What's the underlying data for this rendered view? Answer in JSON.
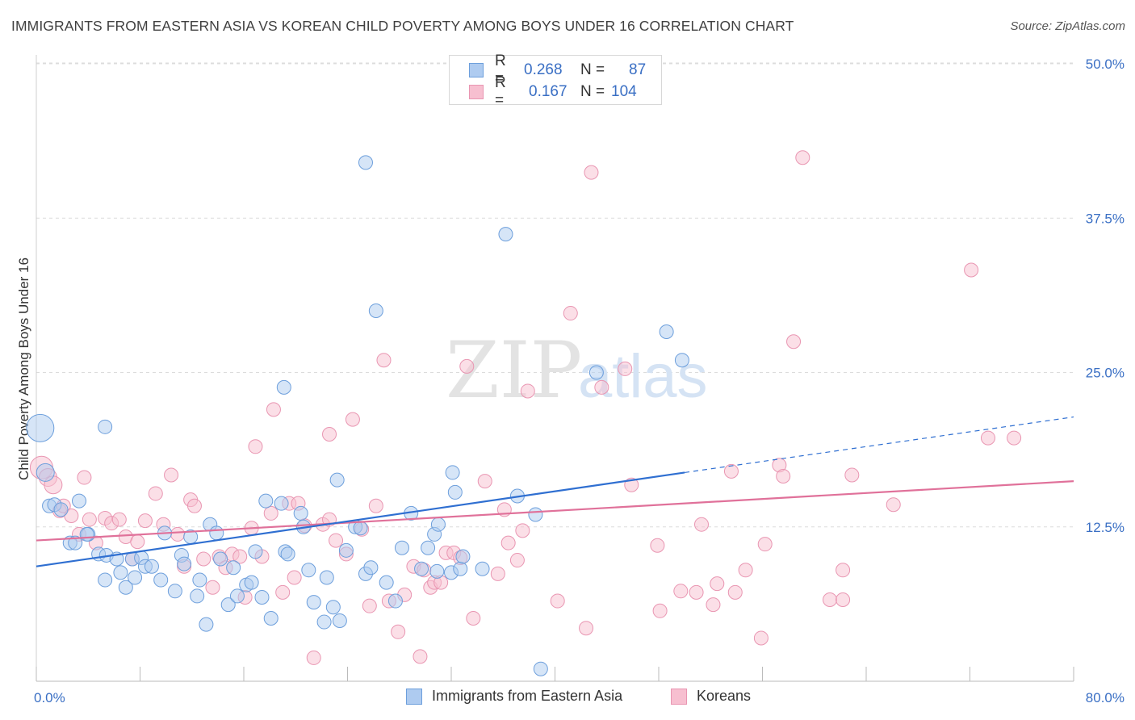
{
  "header": {
    "title": "IMMIGRANTS FROM EASTERN ASIA VS KOREAN CHILD POVERTY AMONG BOYS UNDER 16 CORRELATION CHART",
    "source": "Source: ZipAtlas.com"
  },
  "watermark": {
    "zip": "ZIP",
    "atlas": "atlas"
  },
  "legend": {
    "rows": [
      {
        "r_label": "R =",
        "r_value": "0.268",
        "n_label": "N =",
        "n_value": "87"
      },
      {
        "r_label": "R =",
        "r_value": "0.167",
        "n_label": "N =",
        "n_value": "104"
      }
    ]
  },
  "bottom_legend": {
    "series1": "Immigrants from Eastern Asia",
    "series2": "Koreans"
  },
  "chart_data": {
    "type": "scatter",
    "title": "IMMIGRANTS FROM EASTERN ASIA VS KOREAN CHILD POVERTY AMONG BOYS UNDER 16 CORRELATION CHART",
    "xlabel": "",
    "ylabel": "Child Poverty Among Boys Under 16",
    "xlim": [
      0,
      80
    ],
    "ylim": [
      0,
      52
    ],
    "x_tick_labels": [
      "0.0%",
      "80.0%"
    ],
    "y_ticks": [
      12.5,
      25.0,
      37.5,
      50.0
    ],
    "y_tick_labels": [
      "12.5%",
      "25.0%",
      "37.5%",
      "50.0%"
    ],
    "grid": true,
    "legend_position": "top-center",
    "colors": {
      "series1_fill": "#aecbf0",
      "series1_stroke": "#6d9fdc",
      "series1_line": "#2f6fd1",
      "series2_fill": "#f7bfd0",
      "series2_stroke": "#e996b2",
      "series2_line": "#e0719a"
    },
    "series": [
      {
        "name": "Immigrants from Eastern Asia",
        "r": 0.268,
        "n": 87,
        "trend": {
          "x0": 0,
          "y0": 9.3,
          "x1": 50,
          "y1": 16.9,
          "dash_x1": 80,
          "dash_y1": 21.4
        },
        "points": [
          [
            0.3,
            20.5,
            4
          ],
          [
            0.7,
            16.9,
            2
          ],
          [
            1.0,
            14.2,
            1
          ],
          [
            1.4,
            14.3,
            1
          ],
          [
            1.9,
            13.9,
            1
          ],
          [
            2.6,
            11.2,
            1
          ],
          [
            3.3,
            14.6,
            1
          ],
          [
            3.0,
            11.2,
            1
          ],
          [
            4.0,
            11.9,
            1
          ],
          [
            4.8,
            10.3,
            1
          ],
          [
            5.3,
            20.6,
            1
          ],
          [
            3.9,
            11.9,
            1
          ],
          [
            5.4,
            10.2,
            1
          ],
          [
            6.2,
            9.9,
            1
          ],
          [
            6.5,
            8.8,
            1
          ],
          [
            6.9,
            7.6,
            1
          ],
          [
            5.3,
            8.2,
            1
          ],
          [
            7.4,
            9.9,
            1
          ],
          [
            7.6,
            8.4,
            1
          ],
          [
            8.1,
            10.0,
            1
          ],
          [
            8.4,
            9.3,
            1
          ],
          [
            8.9,
            9.3,
            1
          ],
          [
            9.6,
            8.2,
            1
          ],
          [
            9.9,
            12.0,
            1
          ],
          [
            10.7,
            7.3,
            1
          ],
          [
            11.2,
            10.2,
            1
          ],
          [
            11.4,
            9.5,
            1
          ],
          [
            11.9,
            11.7,
            1
          ],
          [
            12.4,
            6.9,
            1
          ],
          [
            12.6,
            8.2,
            1
          ],
          [
            13.1,
            4.6,
            1
          ],
          [
            13.4,
            12.7,
            1
          ],
          [
            13.9,
            12.0,
            1
          ],
          [
            14.2,
            9.9,
            1
          ],
          [
            14.8,
            6.2,
            1
          ],
          [
            15.2,
            9.2,
            1
          ],
          [
            15.5,
            6.9,
            1
          ],
          [
            16.2,
            7.8,
            1
          ],
          [
            16.6,
            8.0,
            1
          ],
          [
            16.9,
            10.5,
            1
          ],
          [
            17.4,
            6.8,
            1
          ],
          [
            17.7,
            14.6,
            1
          ],
          [
            18.1,
            5.1,
            1
          ],
          [
            18.9,
            14.4,
            1
          ],
          [
            19.2,
            10.5,
            1
          ],
          [
            19.4,
            10.3,
            1
          ],
          [
            19.1,
            23.8,
            1
          ],
          [
            20.4,
            13.6,
            1
          ],
          [
            20.6,
            12.5,
            1
          ],
          [
            21.0,
            9.0,
            1
          ],
          [
            21.4,
            6.4,
            1
          ],
          [
            22.2,
            4.8,
            1
          ],
          [
            22.4,
            8.4,
            1
          ],
          [
            22.9,
            6.0,
            1
          ],
          [
            23.2,
            16.3,
            1
          ],
          [
            23.4,
            4.9,
            1
          ],
          [
            23.9,
            10.6,
            1
          ],
          [
            24.6,
            12.5,
            1
          ],
          [
            25.0,
            12.4,
            1
          ],
          [
            25.4,
            8.7,
            1
          ],
          [
            25.8,
            9.2,
            1
          ],
          [
            25.4,
            42.0,
            1
          ],
          [
            26.2,
            30.0,
            1
          ],
          [
            27.0,
            8.0,
            1
          ],
          [
            27.7,
            6.5,
            1
          ],
          [
            28.2,
            10.8,
            1
          ],
          [
            28.9,
            13.6,
            1
          ],
          [
            29.7,
            9.1,
            1
          ],
          [
            30.2,
            10.8,
            1
          ],
          [
            30.7,
            11.9,
            1
          ],
          [
            31.0,
            12.7,
            1
          ],
          [
            30.9,
            8.9,
            1
          ],
          [
            32.0,
            8.8,
            1
          ],
          [
            32.7,
            9.1,
            1
          ],
          [
            32.1,
            16.9,
            1
          ],
          [
            32.3,
            15.3,
            1
          ],
          [
            32.9,
            10.1,
            1
          ],
          [
            34.4,
            9.1,
            1
          ],
          [
            36.2,
            36.2,
            1
          ],
          [
            37.1,
            15.0,
            1
          ],
          [
            38.5,
            13.5,
            1
          ],
          [
            38.9,
            1.0,
            1
          ],
          [
            43.2,
            25.0,
            1
          ],
          [
            48.6,
            28.3,
            1
          ],
          [
            49.8,
            26.0,
            1
          ]
        ]
      },
      {
        "name": "Koreans",
        "r": 0.167,
        "n": 104,
        "trend": {
          "x0": 0,
          "y0": 11.4,
          "x1": 80,
          "y1": 16.2
        },
        "points": [
          [
            0.4,
            17.3,
            3
          ],
          [
            0.9,
            16.5,
            2
          ],
          [
            1.3,
            15.9,
            2
          ],
          [
            1.8,
            13.8,
            1
          ],
          [
            2.1,
            14.2,
            1
          ],
          [
            2.7,
            13.4,
            1
          ],
          [
            3.3,
            11.9,
            1
          ],
          [
            3.7,
            16.5,
            1
          ],
          [
            4.1,
            13.1,
            1
          ],
          [
            4.6,
            11.2,
            1
          ],
          [
            5.3,
            13.2,
            1
          ],
          [
            5.8,
            12.8,
            1
          ],
          [
            6.4,
            13.1,
            1
          ],
          [
            6.9,
            11.7,
            1
          ],
          [
            7.4,
            9.9,
            1
          ],
          [
            7.8,
            11.3,
            1
          ],
          [
            8.4,
            13.0,
            1
          ],
          [
            9.2,
            15.2,
            1
          ],
          [
            9.8,
            12.7,
            1
          ],
          [
            10.4,
            16.7,
            1
          ],
          [
            10.9,
            11.9,
            1
          ],
          [
            11.4,
            9.3,
            1
          ],
          [
            11.9,
            14.7,
            1
          ],
          [
            12.2,
            14.2,
            1
          ],
          [
            12.9,
            9.9,
            1
          ],
          [
            13.6,
            7.6,
            1
          ],
          [
            14.1,
            10.1,
            1
          ],
          [
            14.6,
            9.2,
            1
          ],
          [
            15.1,
            10.3,
            1
          ],
          [
            15.7,
            10.1,
            1
          ],
          [
            16.1,
            6.8,
            1
          ],
          [
            16.6,
            12.4,
            1
          ],
          [
            16.9,
            19.0,
            1
          ],
          [
            17.4,
            10.1,
            1
          ],
          [
            18.1,
            13.6,
            1
          ],
          [
            18.3,
            22.0,
            1
          ],
          [
            19.0,
            7.2,
            1
          ],
          [
            19.5,
            14.4,
            1
          ],
          [
            19.9,
            8.4,
            1
          ],
          [
            20.2,
            14.4,
            1
          ],
          [
            20.7,
            12.6,
            1
          ],
          [
            21.4,
            1.9,
            1
          ],
          [
            22.1,
            12.7,
            1
          ],
          [
            22.6,
            13.1,
            1
          ],
          [
            22.6,
            20.0,
            1
          ],
          [
            23.1,
            11.4,
            1
          ],
          [
            23.9,
            10.3,
            1
          ],
          [
            24.4,
            21.2,
            1
          ],
          [
            25.1,
            12.3,
            1
          ],
          [
            25.7,
            6.1,
            1
          ],
          [
            26.2,
            14.2,
            1
          ],
          [
            26.8,
            26.0,
            1
          ],
          [
            27.2,
            6.5,
            1
          ],
          [
            27.9,
            4.0,
            1
          ],
          [
            28.4,
            7.0,
            1
          ],
          [
            29.1,
            9.3,
            1
          ],
          [
            29.6,
            2.0,
            1
          ],
          [
            29.9,
            9.0,
            1
          ],
          [
            30.4,
            7.6,
            1
          ],
          [
            30.7,
            8.0,
            1
          ],
          [
            31.2,
            8.0,
            1
          ],
          [
            31.6,
            10.4,
            1
          ],
          [
            32.2,
            10.4,
            1
          ],
          [
            32.7,
            10.0,
            1
          ],
          [
            33.2,
            25.5,
            1
          ],
          [
            33.7,
            5.1,
            1
          ],
          [
            34.6,
            16.2,
            1
          ],
          [
            35.6,
            8.7,
            1
          ],
          [
            36.1,
            13.9,
            1
          ],
          [
            36.4,
            11.2,
            1
          ],
          [
            37.1,
            9.8,
            1
          ],
          [
            37.5,
            12.2,
            1
          ],
          [
            37.9,
            23.5,
            1
          ],
          [
            40.2,
            6.5,
            1
          ],
          [
            41.2,
            29.8,
            1
          ],
          [
            42.4,
            4.3,
            1
          ],
          [
            42.8,
            41.2,
            1
          ],
          [
            43.6,
            23.8,
            1
          ],
          [
            45.4,
            25.3,
            1
          ],
          [
            45.9,
            15.9,
            1
          ],
          [
            47.9,
            11.0,
            1
          ],
          [
            48.1,
            5.7,
            1
          ],
          [
            49.7,
            7.3,
            1
          ],
          [
            50.9,
            7.2,
            1
          ],
          [
            51.3,
            12.7,
            1
          ],
          [
            52.2,
            6.2,
            1
          ],
          [
            52.5,
            7.9,
            1
          ],
          [
            53.6,
            17.0,
            1
          ],
          [
            53.9,
            7.2,
            1
          ],
          [
            54.7,
            9.0,
            1
          ],
          [
            55.9,
            3.5,
            1
          ],
          [
            56.2,
            11.1,
            1
          ],
          [
            57.3,
            17.5,
            1
          ],
          [
            57.6,
            16.6,
            1
          ],
          [
            58.4,
            27.5,
            1
          ],
          [
            59.1,
            42.4,
            1
          ],
          [
            61.2,
            6.6,
            1
          ],
          [
            62.2,
            6.6,
            1
          ],
          [
            62.2,
            9.0,
            1
          ],
          [
            62.9,
            16.7,
            1
          ],
          [
            66.1,
            14.3,
            1
          ],
          [
            72.1,
            33.3,
            1
          ],
          [
            73.4,
            19.7,
            1
          ],
          [
            75.4,
            19.7,
            1
          ]
        ]
      }
    ]
  }
}
